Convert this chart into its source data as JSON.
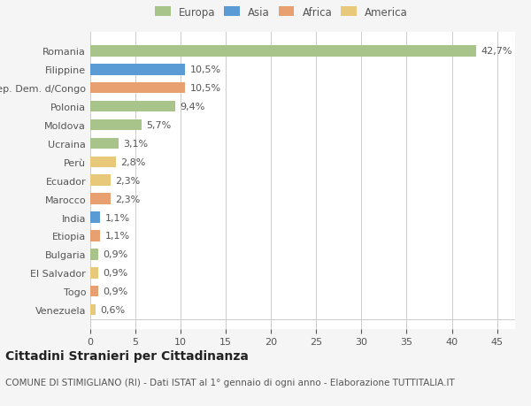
{
  "categories": [
    "Venezuela",
    "Togo",
    "El Salvador",
    "Bulgaria",
    "Etiopia",
    "India",
    "Marocco",
    "Ecuador",
    "Perù",
    "Ucraina",
    "Moldova",
    "Polonia",
    "Rep. Dem. d/Congo",
    "Filippine",
    "Romania"
  ],
  "values": [
    0.6,
    0.9,
    0.9,
    0.9,
    1.1,
    1.1,
    2.3,
    2.3,
    2.8,
    3.1,
    5.7,
    9.4,
    10.5,
    10.5,
    42.7
  ],
  "labels": [
    "0,6%",
    "0,9%",
    "0,9%",
    "0,9%",
    "1,1%",
    "1,1%",
    "2,3%",
    "2,3%",
    "2,8%",
    "3,1%",
    "5,7%",
    "9,4%",
    "10,5%",
    "10,5%",
    "42,7%"
  ],
  "colors": [
    "#e8c97a",
    "#e8a070",
    "#e8c97a",
    "#a8c48a",
    "#e8a070",
    "#5b9bd5",
    "#e8a070",
    "#e8c97a",
    "#e8c97a",
    "#a8c48a",
    "#a8c48a",
    "#a8c48a",
    "#e8a070",
    "#5b9bd5",
    "#a8c48a"
  ],
  "continent_colors": {
    "Europa": "#a8c48a",
    "Asia": "#5b9bd5",
    "Africa": "#e8a070",
    "America": "#e8c97a"
  },
  "legend_labels": [
    "Europa",
    "Asia",
    "Africa",
    "America"
  ],
  "title": "Cittadini Stranieri per Cittadinanza",
  "subtitle": "COMUNE DI STIMIGLIANO (RI) - Dati ISTAT al 1° gennaio di ogni anno - Elaborazione TUTTITALIA.IT",
  "xlim": [
    0,
    47
  ],
  "xticks": [
    0,
    5,
    10,
    15,
    20,
    25,
    30,
    35,
    40,
    45
  ],
  "background_color": "#f5f5f5",
  "bar_bg_color": "#ffffff",
  "grid_color": "#cccccc",
  "text_color": "#555555",
  "title_fontsize": 10,
  "subtitle_fontsize": 7.5,
  "tick_fontsize": 8,
  "label_fontsize": 8,
  "legend_fontsize": 8.5
}
